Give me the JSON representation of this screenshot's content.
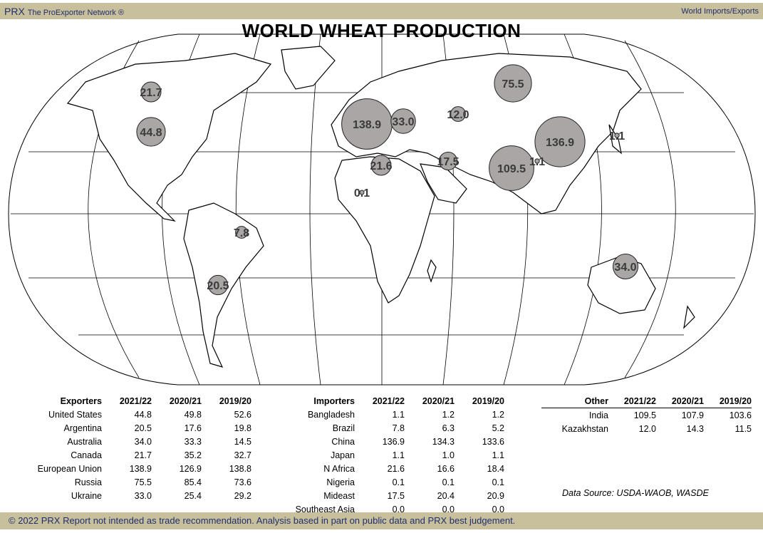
{
  "header": {
    "brand": "PRX",
    "network": "The ProExporter Network ®",
    "section": "World Imports/Exports"
  },
  "title": "WORLD WHEAT PRODUCTION",
  "colors": {
    "band": "#c8bf9c",
    "bubble": "#aaa6a6",
    "text_blue": "#1f2f6e"
  },
  "bubbles": [
    {
      "label": "21.7",
      "region": "Canada",
      "value": 21.7
    },
    {
      "label": "44.8",
      "region": "United States",
      "value": 44.8
    },
    {
      "label": "138.9",
      "region": "European Union",
      "value": 138.9
    },
    {
      "label": "33.0",
      "region": "Ukraine",
      "value": 33.0
    },
    {
      "label": "75.5",
      "region": "Russia",
      "value": 75.5
    },
    {
      "label": "12.0",
      "region": "Kazakhstan",
      "value": 12.0
    },
    {
      "label": "136.9",
      "region": "China",
      "value": 136.9
    },
    {
      "label": "109.5",
      "region": "India",
      "value": 109.5
    },
    {
      "label": "1.1",
      "region": "Bangladesh",
      "value": 1.1
    },
    {
      "label": "1.1",
      "region": "Japan",
      "value": 1.1
    },
    {
      "label": "21.6",
      "region": "N Africa",
      "value": 21.6
    },
    {
      "label": "17.5",
      "region": "Mideast",
      "value": 17.5
    },
    {
      "label": "0.1",
      "region": "Nigeria",
      "value": 0.1
    },
    {
      "label": "7.8",
      "region": "Brazil",
      "value": 7.8
    },
    {
      "label": "20.5",
      "region": "Argentina",
      "value": 20.5
    },
    {
      "label": "34.0",
      "region": "Australia",
      "value": 34.0
    }
  ],
  "exporters": {
    "headers": [
      "Exporters",
      "2021/22",
      "2020/21",
      "2019/20"
    ],
    "rows": [
      [
        "United States",
        "44.8",
        "49.8",
        "52.6"
      ],
      [
        "Argentina",
        "20.5",
        "17.6",
        "19.8"
      ],
      [
        "Australia",
        "34.0",
        "33.3",
        "14.5"
      ],
      [
        "Canada",
        "21.7",
        "35.2",
        "32.7"
      ],
      [
        "European Union",
        "138.9",
        "126.9",
        "138.8"
      ],
      [
        "Russia",
        "75.5",
        "85.4",
        "73.6"
      ],
      [
        "Ukraine",
        "33.0",
        "25.4",
        "29.2"
      ]
    ]
  },
  "importers": {
    "headers": [
      "Importers",
      "2021/22",
      "2020/21",
      "2019/20"
    ],
    "rows": [
      [
        "Bangladesh",
        "1.1",
        "1.2",
        "1.2"
      ],
      [
        "Brazil",
        "7.8",
        "6.3",
        "5.2"
      ],
      [
        "China",
        "136.9",
        "134.3",
        "133.6"
      ],
      [
        "Japan",
        "1.1",
        "1.0",
        "1.1"
      ],
      [
        "N Africa",
        "21.6",
        "16.6",
        "18.4"
      ],
      [
        "Nigeria",
        "0.1",
        "0.1",
        "0.1"
      ],
      [
        "Mideast",
        "17.5",
        "20.4",
        "20.9"
      ],
      [
        "Southeast Asia",
        "0.0",
        "0.0",
        "0.0"
      ]
    ]
  },
  "other": {
    "headers": [
      "Other",
      "2021/22",
      "2020/21",
      "2019/20"
    ],
    "rows": [
      [
        "India",
        "109.5",
        "107.9",
        "103.6"
      ],
      [
        "Kazakhstan",
        "12.0",
        "14.3",
        "11.5"
      ]
    ]
  },
  "source": "Data Source: USDA-WAOB, WASDE",
  "footer": "© 2022 PRX  Report not intended as trade recommendation. Analysis based in part on public data and PRX best judgement."
}
